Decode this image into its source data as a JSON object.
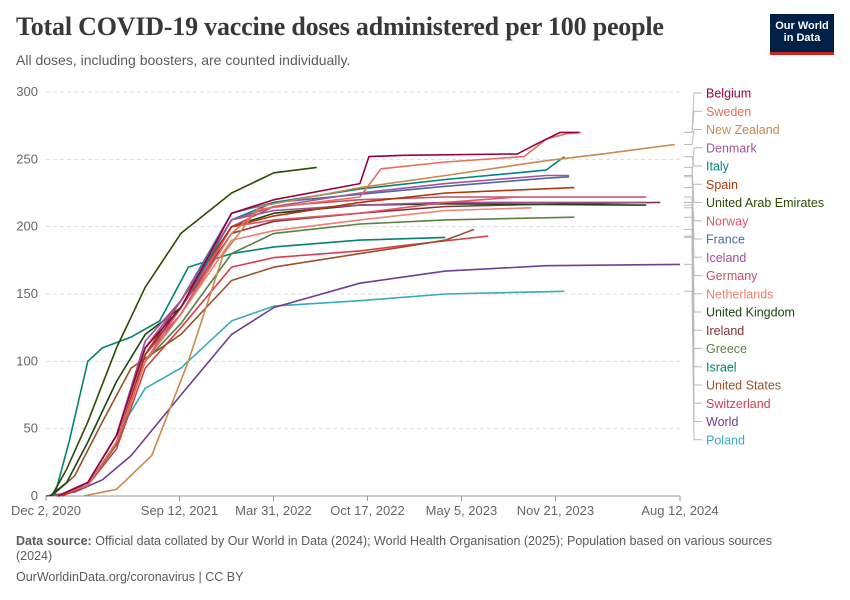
{
  "header": {
    "title": "Total COVID-19 vaccine doses administered per 100 people",
    "subtitle": "All doses, including boosters, are counted individually."
  },
  "logo": {
    "line1": "Our World",
    "line2": "in Data"
  },
  "footer": {
    "source_label": "Data source:",
    "source_text": "Official data collated by Our World in Data (2024); World Health Organisation (2025); Population based on various sources (2024)",
    "credit": "OurWorldinData.org/coronavirus | CC BY"
  },
  "chart_data": {
    "type": "line",
    "x_ticks": [
      "Dec 2, 2020",
      "Sep 12, 2021",
      "Mar 31, 2022",
      "Oct 17, 2022",
      "May 5, 2023",
      "Nov 21, 2023",
      "Aug 12, 2024"
    ],
    "y_ticks": [
      0,
      50,
      100,
      150,
      200,
      250,
      300
    ],
    "ylim": [
      0,
      300
    ],
    "xlim": [
      "2020-12-02",
      "2024-08-12"
    ],
    "grid": true,
    "legend_position": "right",
    "series": [
      {
        "name": "Belgium",
        "color": "#970046",
        "points": [
          [
            "2020-12-28",
            0
          ],
          [
            "2021-03-01",
            10
          ],
          [
            "2021-05-01",
            45
          ],
          [
            "2021-07-01",
            110
          ],
          [
            "2021-09-15",
            140
          ],
          [
            "2022-01-01",
            210
          ],
          [
            "2022-04-01",
            220
          ],
          [
            "2022-10-01",
            232
          ],
          [
            "2022-10-20",
            252
          ],
          [
            "2023-01-01",
            253
          ],
          [
            "2023-09-01",
            254
          ],
          [
            "2023-10-15",
            262
          ],
          [
            "2023-12-01",
            270
          ],
          [
            "2024-01-10",
            270
          ]
        ]
      },
      {
        "name": "Sweden",
        "color": "#e56e5a",
        "points": [
          [
            "2020-12-27",
            0
          ],
          [
            "2021-03-01",
            8
          ],
          [
            "2021-05-01",
            40
          ],
          [
            "2021-07-01",
            100
          ],
          [
            "2021-09-15",
            135
          ],
          [
            "2022-01-01",
            195
          ],
          [
            "2022-03-01",
            213
          ],
          [
            "2022-10-01",
            222
          ],
          [
            "2022-11-15",
            243
          ],
          [
            "2023-04-01",
            248
          ],
          [
            "2023-09-15",
            252
          ],
          [
            "2023-11-01",
            265
          ],
          [
            "2023-12-15",
            269
          ],
          [
            "2024-01-15",
            270
          ]
        ]
      },
      {
        "name": "New Zealand",
        "color": "#c98a4b",
        "points": [
          [
            "2021-02-20",
            0
          ],
          [
            "2021-05-01",
            5
          ],
          [
            "2021-07-15",
            30
          ],
          [
            "2021-10-01",
            100
          ],
          [
            "2021-12-15",
            180
          ],
          [
            "2022-03-01",
            215
          ],
          [
            "2022-10-01",
            229
          ],
          [
            "2023-04-01",
            238
          ],
          [
            "2023-11-01",
            249
          ],
          [
            "2024-03-01",
            254
          ],
          [
            "2024-08-01",
            261
          ]
        ]
      },
      {
        "name": "Denmark",
        "color": "#a2559c",
        "points": [
          [
            "2020-12-27",
            0
          ],
          [
            "2021-03-01",
            10
          ],
          [
            "2021-05-01",
            45
          ],
          [
            "2021-07-01",
            110
          ],
          [
            "2021-09-15",
            145
          ],
          [
            "2022-01-01",
            205
          ],
          [
            "2022-04-01",
            215
          ],
          [
            "2022-10-01",
            225
          ],
          [
            "2023-04-01",
            232
          ],
          [
            "2023-11-01",
            238
          ],
          [
            "2023-12-20",
            238
          ]
        ]
      },
      {
        "name": "Italy",
        "color": "#00847e",
        "points": [
          [
            "2020-12-27",
            0
          ],
          [
            "2021-03-01",
            10
          ],
          [
            "2021-05-01",
            45
          ],
          [
            "2021-07-01",
            110
          ],
          [
            "2021-09-15",
            140
          ],
          [
            "2022-01-01",
            205
          ],
          [
            "2022-04-01",
            218
          ],
          [
            "2022-10-01",
            228
          ],
          [
            "2023-04-01",
            235
          ],
          [
            "2023-11-01",
            242
          ],
          [
            "2023-12-10",
            252
          ]
        ]
      },
      {
        "name": "Spain",
        "color": "#b13507",
        "points": [
          [
            "2021-01-05",
            0
          ],
          [
            "2021-03-01",
            8
          ],
          [
            "2021-05-01",
            40
          ],
          [
            "2021-07-01",
            105
          ],
          [
            "2021-09-15",
            145
          ],
          [
            "2022-01-01",
            200
          ],
          [
            "2022-04-01",
            208
          ],
          [
            "2022-10-01",
            218
          ],
          [
            "2023-04-01",
            225
          ],
          [
            "2023-12-31",
            229
          ]
        ]
      },
      {
        "name": "United Arab Emirates",
        "color": "#2c4d00",
        "points": [
          [
            "2020-12-14",
            0
          ],
          [
            "2021-01-15",
            20
          ],
          [
            "2021-03-01",
            55
          ],
          [
            "2021-05-01",
            110
          ],
          [
            "2021-07-01",
            155
          ],
          [
            "2021-09-15",
            195
          ],
          [
            "2022-01-01",
            225
          ],
          [
            "2022-04-01",
            240
          ],
          [
            "2022-07-01",
            244
          ]
        ]
      },
      {
        "name": "Norway",
        "color": "#e6536a",
        "points": [
          [
            "2020-12-27",
            0
          ],
          [
            "2021-03-01",
            8
          ],
          [
            "2021-05-01",
            40
          ],
          [
            "2021-07-01",
            100
          ],
          [
            "2021-09-15",
            140
          ],
          [
            "2022-01-01",
            200
          ],
          [
            "2022-04-01",
            205
          ],
          [
            "2022-10-01",
            210
          ],
          [
            "2023-04-01",
            218
          ],
          [
            "2023-09-01",
            222
          ]
        ]
      },
      {
        "name": "France",
        "color": "#4c6a9c",
        "points": [
          [
            "2020-12-27",
            0
          ],
          [
            "2021-03-01",
            10
          ],
          [
            "2021-05-01",
            45
          ],
          [
            "2021-07-01",
            110
          ],
          [
            "2021-09-15",
            145
          ],
          [
            "2022-01-01",
            210
          ],
          [
            "2022-04-01",
            218
          ],
          [
            "2022-10-01",
            224
          ],
          [
            "2023-04-01",
            230
          ],
          [
            "2023-11-01",
            236
          ],
          [
            "2023-12-20",
            237
          ]
        ]
      },
      {
        "name": "Iceland",
        "color": "#a54b97",
        "points": [
          [
            "2020-12-29",
            0
          ],
          [
            "2021-03-01",
            10
          ],
          [
            "2021-05-01",
            45
          ],
          [
            "2021-07-01",
            115
          ],
          [
            "2021-09-15",
            145
          ],
          [
            "2022-01-01",
            205
          ],
          [
            "2022-04-01",
            212
          ],
          [
            "2022-10-01",
            216
          ],
          [
            "2023-04-01",
            218
          ],
          [
            "2023-12-01",
            218
          ],
          [
            "2024-06-01",
            218
          ]
        ]
      },
      {
        "name": "Germany",
        "color": "#c15065",
        "points": [
          [
            "2020-12-27",
            0
          ],
          [
            "2021-03-01",
            8
          ],
          [
            "2021-05-01",
            40
          ],
          [
            "2021-07-01",
            105
          ],
          [
            "2021-09-15",
            135
          ],
          [
            "2022-01-01",
            200
          ],
          [
            "2022-04-01",
            215
          ],
          [
            "2022-10-01",
            220
          ],
          [
            "2023-04-01",
            222
          ],
          [
            "2024-06-01",
            222
          ]
        ]
      },
      {
        "name": "Netherlands",
        "color": "#ee8170",
        "points": [
          [
            "2021-01-06",
            0
          ],
          [
            "2021-03-01",
            8
          ],
          [
            "2021-05-01",
            40
          ],
          [
            "2021-07-01",
            100
          ],
          [
            "2021-09-15",
            135
          ],
          [
            "2022-01-01",
            190
          ],
          [
            "2022-04-01",
            197
          ],
          [
            "2022-10-01",
            205
          ],
          [
            "2023-04-01",
            212
          ],
          [
            "2023-10-01",
            214
          ]
        ]
      },
      {
        "name": "United Kingdom",
        "color": "#18470f",
        "points": [
          [
            "2020-12-10",
            0
          ],
          [
            "2021-01-15",
            10
          ],
          [
            "2021-03-01",
            40
          ],
          [
            "2021-05-01",
            85
          ],
          [
            "2021-07-01",
            120
          ],
          [
            "2021-09-15",
            140
          ],
          [
            "2022-01-01",
            200
          ],
          [
            "2022-04-01",
            210
          ],
          [
            "2022-10-01",
            216
          ],
          [
            "2023-04-01",
            217
          ],
          [
            "2024-06-01",
            216
          ]
        ]
      },
      {
        "name": "Ireland",
        "color": "#883039",
        "points": [
          [
            "2020-12-30",
            0
          ],
          [
            "2021-03-01",
            8
          ],
          [
            "2021-05-01",
            40
          ],
          [
            "2021-07-01",
            105
          ],
          [
            "2021-09-15",
            140
          ],
          [
            "2022-01-01",
            195
          ],
          [
            "2022-04-01",
            204
          ],
          [
            "2022-10-01",
            210
          ],
          [
            "2023-04-01",
            215
          ],
          [
            "2023-12-01",
            217
          ],
          [
            "2024-07-01",
            218
          ]
        ]
      },
      {
        "name": "Greece",
        "color": "#578145",
        "points": [
          [
            "2020-12-28",
            0
          ],
          [
            "2021-03-01",
            8
          ],
          [
            "2021-05-01",
            38
          ],
          [
            "2021-07-01",
            100
          ],
          [
            "2021-09-15",
            128
          ],
          [
            "2022-01-01",
            180
          ],
          [
            "2022-04-01",
            195
          ],
          [
            "2022-10-01",
            202
          ],
          [
            "2023-04-01",
            205
          ],
          [
            "2023-12-31",
            207
          ]
        ]
      },
      {
        "name": "Israel",
        "color": "#008470",
        "points": [
          [
            "2020-12-20",
            0
          ],
          [
            "2021-01-20",
            40
          ],
          [
            "2021-03-01",
            100
          ],
          [
            "2021-04-01",
            110
          ],
          [
            "2021-06-01",
            118
          ],
          [
            "2021-08-01",
            130
          ],
          [
            "2021-10-01",
            170
          ],
          [
            "2022-01-01",
            180
          ],
          [
            "2022-04-01",
            185
          ],
          [
            "2022-10-01",
            190
          ],
          [
            "2023-04-01",
            192
          ]
        ]
      },
      {
        "name": "United States",
        "color": "#9a5129",
        "points": [
          [
            "2020-12-14",
            0
          ],
          [
            "2021-02-01",
            15
          ],
          [
            "2021-04-01",
            55
          ],
          [
            "2021-06-01",
            95
          ],
          [
            "2021-09-15",
            120
          ],
          [
            "2022-01-01",
            160
          ],
          [
            "2022-04-01",
            170
          ],
          [
            "2022-10-01",
            180
          ],
          [
            "2023-01-01",
            185
          ],
          [
            "2023-04-01",
            190
          ],
          [
            "2023-06-01",
            198
          ]
        ]
      },
      {
        "name": "Switzerland",
        "color": "#d73c50",
        "points": [
          [
            "2020-12-23",
            0
          ],
          [
            "2021-03-01",
            8
          ],
          [
            "2021-05-01",
            35
          ],
          [
            "2021-07-01",
            95
          ],
          [
            "2021-09-15",
            125
          ],
          [
            "2022-01-01",
            170
          ],
          [
            "2022-04-01",
            177
          ],
          [
            "2022-10-01",
            182
          ],
          [
            "2023-01-01",
            186
          ],
          [
            "2023-07-01",
            193
          ]
        ]
      },
      {
        "name": "World",
        "color": "#6d3e91",
        "points": [
          [
            "2020-12-02",
            0
          ],
          [
            "2021-02-01",
            3
          ],
          [
            "2021-04-01",
            12
          ],
          [
            "2021-06-01",
            30
          ],
          [
            "2021-09-15",
            75
          ],
          [
            "2022-01-01",
            120
          ],
          [
            "2022-04-01",
            140
          ],
          [
            "2022-10-01",
            158
          ],
          [
            "2023-04-01",
            167
          ],
          [
            "2023-11-01",
            171
          ],
          [
            "2024-08-12",
            172
          ]
        ]
      },
      {
        "name": "Poland",
        "color": "#38aaba",
        "points": [
          [
            "2020-12-27",
            0
          ],
          [
            "2021-03-01",
            10
          ],
          [
            "2021-05-01",
            45
          ],
          [
            "2021-07-01",
            80
          ],
          [
            "2021-09-15",
            95
          ],
          [
            "2022-01-01",
            130
          ],
          [
            "2022-04-01",
            141
          ],
          [
            "2022-10-01",
            145
          ],
          [
            "2023-04-01",
            150
          ],
          [
            "2023-12-10",
            152
          ]
        ]
      }
    ]
  }
}
